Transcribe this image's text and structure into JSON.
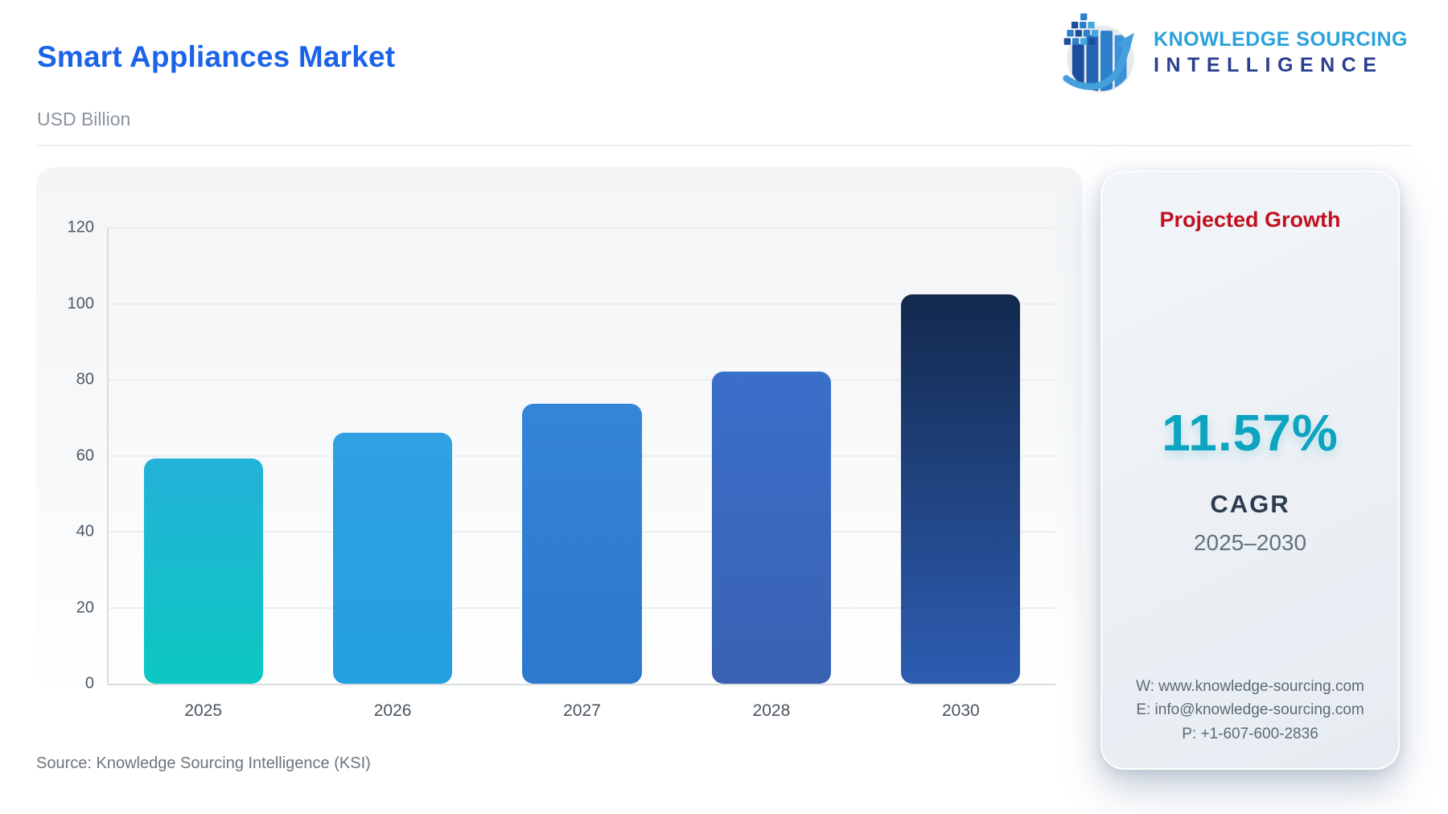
{
  "header": {
    "title": "Smart Appliances Market",
    "subtitle": "USD Billion",
    "title_color": "#1b63e8"
  },
  "logo": {
    "line1": "KNOWLEDGE SOURCING",
    "line2": "INTELLIGENCE",
    "icon": "bar-chart-growth-arrow-globe-icon",
    "colors": {
      "line1": "#2aa2dc",
      "line2": "#2c3e8f"
    }
  },
  "chart_data": {
    "type": "bar",
    "title": "Smart Appliances Market",
    "xlabel": "",
    "ylabel": "USD Billion",
    "categories": [
      "2025",
      "2026",
      "2027",
      "2028",
      "2030"
    ],
    "values": [
      59.2,
      66.1,
      73.7,
      82.2,
      102.4
    ],
    "ylim": [
      0,
      120
    ],
    "yticks": [
      0,
      20,
      40,
      60,
      80,
      100,
      120
    ],
    "grid": true,
    "legend": "none",
    "bar_colors": [
      [
        "#23b2d9",
        "#0cc8c2"
      ],
      [
        "#30a0e2",
        "#23a0e0"
      ],
      [
        "#3484da",
        "#2c79cf"
      ],
      [
        "#3a6fca",
        "#3a61b2"
      ],
      [
        "#13294e",
        "#2d5db2"
      ]
    ]
  },
  "side_panel": {
    "heading": "Projected Growth",
    "value": "11.57%",
    "label": "CAGR",
    "period": "2025–2030",
    "contact": {
      "website": "W: www.knowledge-sourcing.com",
      "email": "E: info@knowledge-sourcing.com",
      "phone": "P: +1-607-600-2836"
    },
    "colors": {
      "heading": "#c11120",
      "value": "#0ca4bf"
    }
  },
  "footer": {
    "source": "Source: Knowledge Sourcing Intelligence (KSI)"
  }
}
